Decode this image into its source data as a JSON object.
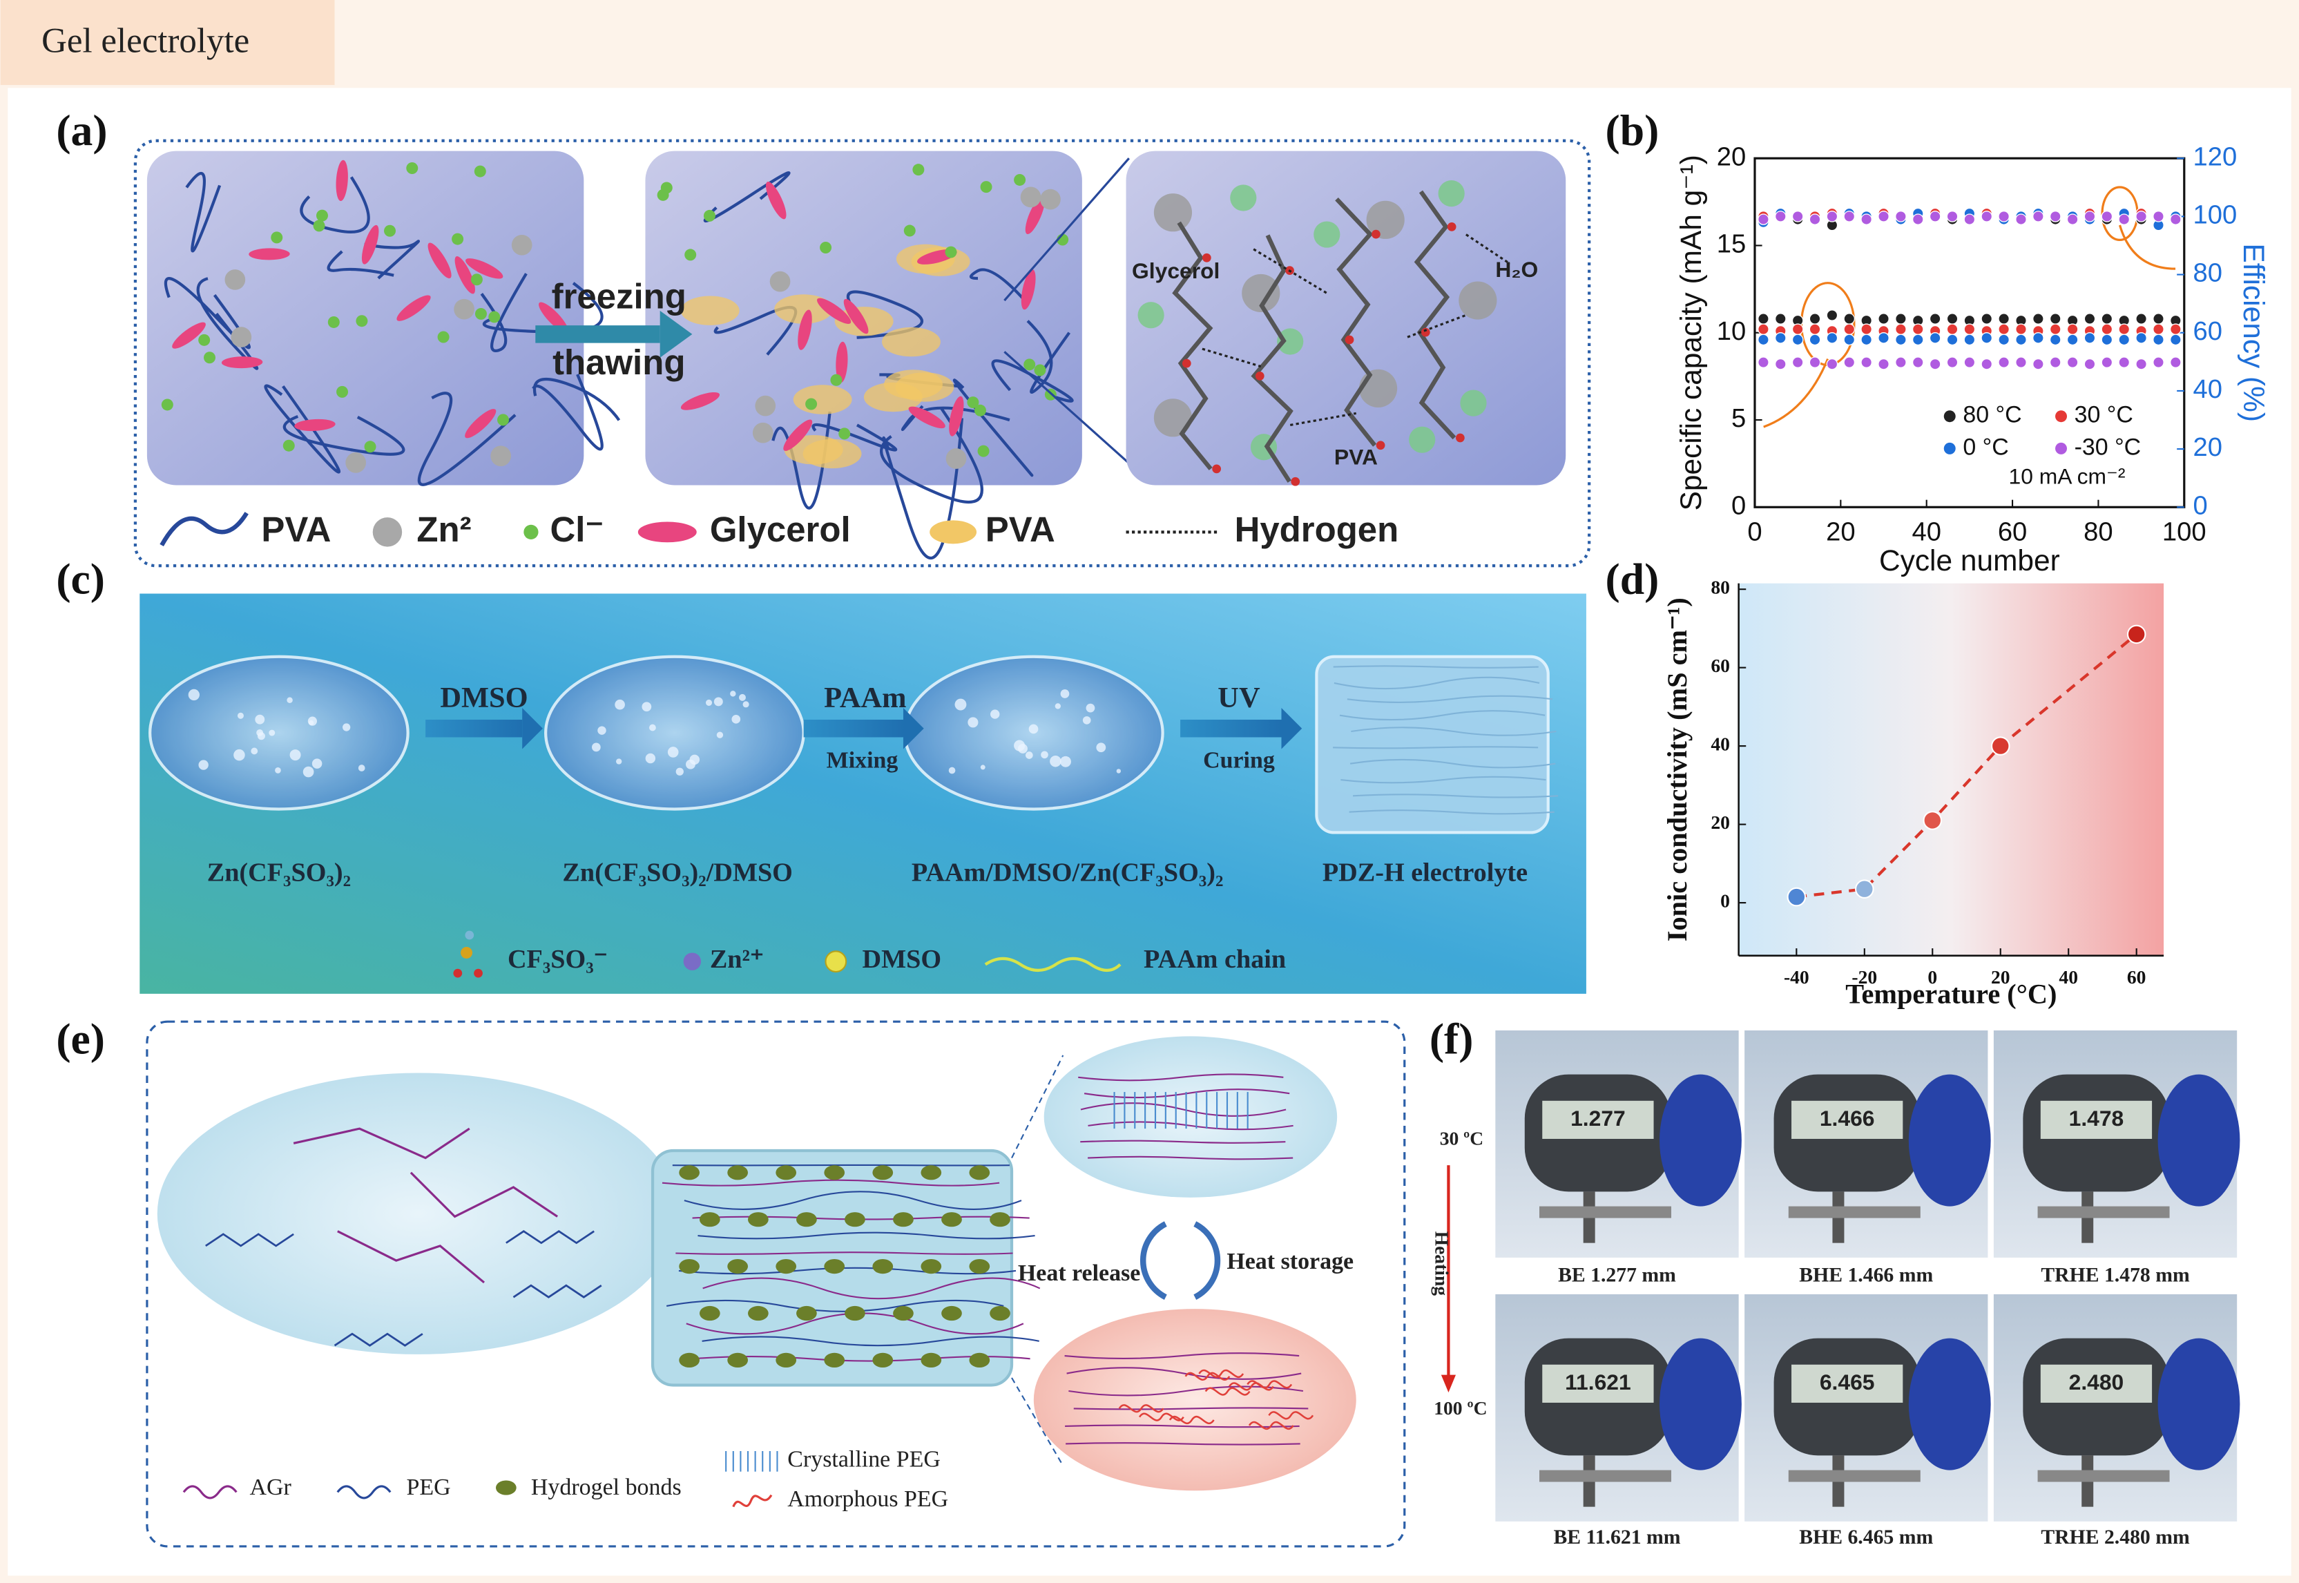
{
  "header": {
    "title": "Gel electrolyte"
  },
  "panels": {
    "a": {
      "label": "(a)",
      "arrow_top": "freezing",
      "arrow_bottom": "thawing",
      "zoom_labels": [
        "Glycerol",
        "H₂O",
        "PVA"
      ],
      "legend": [
        "PVA",
        "Zn²",
        "Cl⁻",
        "Glycerol",
        "PVA",
        "Hydrogen"
      ]
    },
    "b": {
      "label": "(b)"
    },
    "c": {
      "label": "(c)",
      "steps": [
        {
          "top": "DMSO"
        },
        {
          "top": "PAAm",
          "bottom": "Mixing"
        },
        {
          "top": "UV",
          "bottom": "Curing"
        }
      ],
      "stages": [
        "Zn(CF₃SO₃)₂",
        "Zn(CF₃SO₃)₂/DMSO",
        "PAAm/DMSO/Zn(CF₃SO₃)₂",
        "PDZ-H electrolyte"
      ],
      "legend": [
        "CF₃SO₃⁻",
        "Zn²⁺",
        "DMSO",
        "PAAm chain"
      ]
    },
    "d": {
      "label": "(d)"
    },
    "e": {
      "label": "(e)",
      "cycle": [
        "Heat release",
        "Heat storage"
      ],
      "legend": [
        "AGr",
        "PEG",
        "Hydrogel bonds",
        "Crystalline PEG",
        "Amorphous PEG"
      ]
    },
    "f": {
      "label": "(f)",
      "temps": [
        "30 ºC",
        "100 ºC"
      ],
      "direction": "Heating",
      "samples": [
        {
          "display": "1.277",
          "caption": "BE 1.277 mm"
        },
        {
          "display": "1.466",
          "caption": "BHE 1.466 mm"
        },
        {
          "display": "1.478",
          "caption": "TRHE 1.478 mm"
        },
        {
          "display": "11.621",
          "caption": "BE 11.621 mm"
        },
        {
          "display": "6.465",
          "caption": "BHE 6.465 mm"
        },
        {
          "display": "2.480",
          "caption": "TRHE 2.480 mm"
        }
      ]
    }
  },
  "chart_data": [
    {
      "type": "scatter",
      "xlabel": "Cycle number",
      "ylabel": "Specific capacity (mAh g⁻¹)",
      "y2label": "Efficiency (%)",
      "annotation": "10 mA cm⁻²",
      "legend": "lower right",
      "box": true,
      "y2_color": "#1e6fd9",
      "xlim": [
        0,
        100
      ],
      "xticks": [
        0,
        20,
        40,
        60,
        80,
        100
      ],
      "ylim": [
        0,
        20
      ],
      "yticks": [
        0,
        5,
        10,
        15,
        20
      ],
      "y2lim": [
        0,
        120
      ],
      "y2ticks": [
        0,
        20,
        40,
        60,
        80,
        100,
        120
      ],
      "x": [
        2,
        6,
        10,
        14,
        18,
        22,
        26,
        30,
        34,
        38,
        42,
        46,
        50,
        54,
        58,
        62,
        66,
        70,
        74,
        78,
        82,
        86,
        90,
        94,
        98
      ],
      "series": [
        {
          "name": "80 °C",
          "color": "#222222",
          "values": [
            10.8,
            10.8,
            10.7,
            10.8,
            11.0,
            10.8,
            10.7,
            10.8,
            10.8,
            10.7,
            10.8,
            10.8,
            10.7,
            10.8,
            10.8,
            10.7,
            10.8,
            10.8,
            10.7,
            10.8,
            10.8,
            10.7,
            10.8,
            10.8,
            10.7
          ],
          "efficiency": [
            99,
            100,
            99,
            100,
            97,
            100,
            99,
            100,
            100,
            99,
            100,
            99,
            100,
            100,
            99,
            100,
            100,
            99,
            100,
            100,
            99,
            100,
            99,
            100,
            100
          ]
        },
        {
          "name": "30 °C",
          "color": "#e53935",
          "values": [
            10.2,
            10.1,
            10.2,
            10.2,
            10.1,
            10.2,
            10.2,
            10.1,
            10.2,
            10.2,
            10.1,
            10.2,
            10.2,
            10.1,
            10.2,
            10.2,
            10.1,
            10.2,
            10.2,
            10.1,
            10.2,
            10.2,
            10.1,
            10.2,
            10.2
          ],
          "efficiency": [
            100,
            101,
            100,
            100,
            101,
            100,
            100,
            101,
            100,
            100,
            101,
            100,
            100,
            101,
            100,
            100,
            101,
            100,
            100,
            101,
            100,
            100,
            101,
            100,
            100
          ]
        },
        {
          "name": "0 °C",
          "color": "#1e6fd9",
          "values": [
            9.6,
            9.7,
            9.6,
            9.6,
            9.7,
            9.6,
            9.6,
            9.7,
            9.6,
            9.6,
            9.7,
            9.6,
            9.6,
            9.7,
            9.6,
            9.6,
            9.7,
            9.6,
            9.6,
            9.7,
            9.6,
            9.6,
            9.7,
            9.6,
            9.6
          ],
          "efficiency": [
            98,
            101,
            100,
            99,
            100,
            101,
            100,
            100,
            99,
            101,
            100,
            100,
            101,
            100,
            99,
            100,
            101,
            100,
            100,
            99,
            100,
            101,
            100,
            97,
            100
          ]
        },
        {
          "name": "-30 °C",
          "color": "#b05be0",
          "values": [
            8.3,
            8.2,
            8.3,
            8.3,
            8.2,
            8.3,
            8.3,
            8.2,
            8.3,
            8.3,
            8.2,
            8.3,
            8.3,
            8.2,
            8.3,
            8.3,
            8.2,
            8.3,
            8.3,
            8.2,
            8.3,
            8.3,
            8.2,
            8.3,
            8.3
          ],
          "efficiency": [
            99,
            100,
            100,
            99,
            100,
            100,
            99,
            100,
            100,
            99,
            100,
            100,
            99,
            100,
            100,
            99,
            100,
            100,
            99,
            100,
            100,
            99,
            100,
            100,
            99
          ]
        }
      ]
    },
    {
      "type": "line",
      "xlabel": "Temperature (°C)",
      "ylabel": "Ionic conductivity (mS cm⁻¹)",
      "box": false,
      "line_style": "dashed",
      "line_color": "#d9362b",
      "xlim": [
        -57,
        68
      ],
      "xticks": [
        -40,
        -20,
        0,
        20,
        40,
        60
      ],
      "ylim": [
        -13.5,
        81.5
      ],
      "yticks": [
        0,
        20,
        40,
        60,
        80
      ],
      "x": [
        -40,
        -20,
        0,
        20,
        60
      ],
      "values": [
        1.5,
        3.5,
        21,
        40,
        68.5
      ],
      "colors": [
        "#4f86d4",
        "#8fb2dc",
        "#e0564a",
        "#d83a30",
        "#c8241c"
      ]
    }
  ]
}
